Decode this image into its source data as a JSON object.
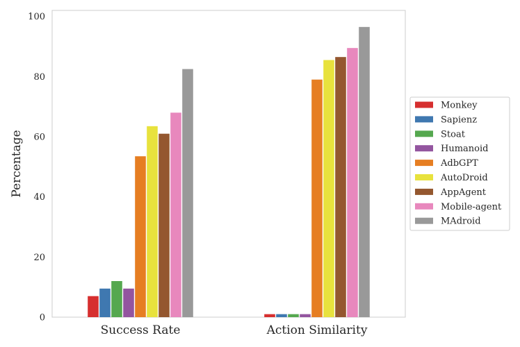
{
  "chart_data": {
    "type": "bar",
    "categories": [
      "Success Rate",
      "Action Similarity"
    ],
    "series": [
      {
        "name": "Monkey",
        "color": "#d62f2f",
        "values": [
          7,
          1
        ]
      },
      {
        "name": "Sapienz",
        "color": "#3f78b0",
        "values": [
          9.5,
          1
        ]
      },
      {
        "name": "Stoat",
        "color": "#55a84f",
        "values": [
          12,
          1
        ]
      },
      {
        "name": "Humanoid",
        "color": "#93559f",
        "values": [
          9.5,
          1
        ]
      },
      {
        "name": "AdbGPT",
        "color": "#e67e22",
        "values": [
          53.5,
          79
        ]
      },
      {
        "name": "AutoDroid",
        "color": "#e8e23d",
        "values": [
          63.5,
          85.5
        ]
      },
      {
        "name": "AppAgent",
        "color": "#94572f",
        "values": [
          61,
          86.5
        ]
      },
      {
        "name": "Mobile-agent",
        "color": "#e888bd",
        "values": [
          68,
          89.5
        ]
      },
      {
        "name": "MAdroid",
        "color": "#999999",
        "values": [
          82.5,
          96.5
        ]
      }
    ],
    "xlabel": "",
    "ylabel": "Percentage",
    "ylim": [
      0,
      102
    ],
    "yticks": [
      0,
      20,
      40,
      60,
      80,
      100
    ],
    "grid": false,
    "legend": "outside-right"
  }
}
